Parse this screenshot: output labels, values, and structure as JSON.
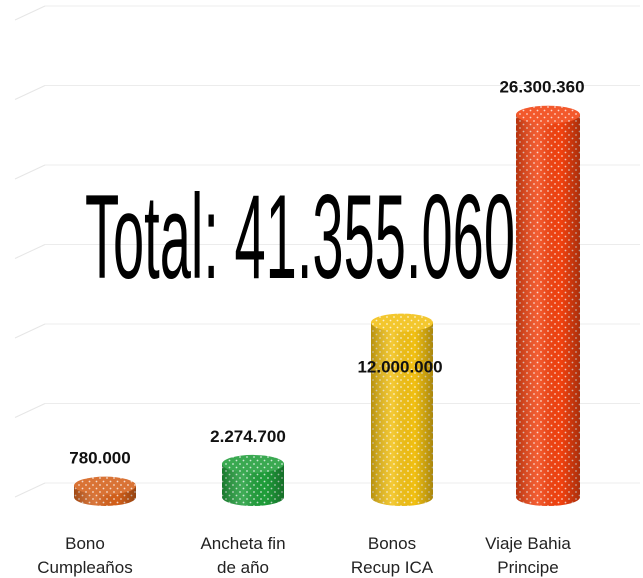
{
  "chart_data": {
    "type": "bar",
    "style": "3d-cylinder",
    "categories": [
      "Bono Cumpleaños",
      "Ancheta fin de año",
      "Bonos Recup ICA",
      "Viaje Bahia Principe"
    ],
    "category_lines": [
      [
        "Bono",
        "Cumpleaños"
      ],
      [
        "Ancheta fin",
        "de año"
      ],
      [
        "Bonos",
        "Recup ICA"
      ],
      [
        "Viaje Bahia",
        "Principe"
      ]
    ],
    "values": [
      780000,
      2274700,
      12000000,
      26300360
    ],
    "data_labels": [
      "780.000",
      "2.274.700",
      "12.000.000",
      "26.300.360"
    ],
    "colors": [
      "#d4601a",
      "#1f9e3a",
      "#f2c012",
      "#f2420f"
    ],
    "annotation": "Total: 41.355.060",
    "ylabel": "",
    "ylim": [
      0,
      28000000
    ],
    "grid": true,
    "legend": "none"
  }
}
